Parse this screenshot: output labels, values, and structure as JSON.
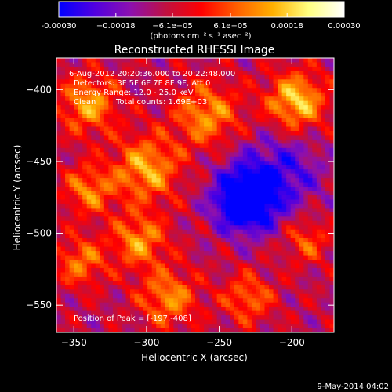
{
  "chart_data": {
    "type": "heatmap",
    "title": "Reconstructed RHESSI Image",
    "xlabel": "Heliocentric X (arcsec)",
    "ylabel": "Heliocentric Y (arcsec)",
    "xlim": [
      -362,
      -171
    ],
    "ylim": [
      -569,
      -378
    ],
    "x_ticks": [
      -350,
      -300,
      -250,
      -200
    ],
    "y_ticks": [
      -550,
      -500,
      -450,
      -400
    ],
    "x_tick_labels": [
      "−350",
      "−300",
      "−250",
      "−200"
    ],
    "y_tick_labels": [
      "−550",
      "−500",
      "−450",
      "−400"
    ],
    "colorbar": {
      "min": -0.0003,
      "max": 0.0003,
      "tick_values": [
        -0.0003,
        -0.00018,
        -6.1e-05,
        6.1e-05,
        0.00018,
        0.0003
      ],
      "tick_labels": [
        "-0.00030",
        "−0.00018",
        "−6.1e−05",
        "6.1e−05",
        "0.00018",
        "0.00030"
      ],
      "unit_label": "(photons cm⁻² s⁻¹ asec⁻²)",
      "colors": [
        "#0000ff",
        "#5000e0",
        "#8c10b0",
        "#c01040",
        "#ff0000",
        "#ff6000",
        "#ffb000",
        "#ffff80",
        "#ffffff"
      ]
    },
    "annotations": [
      "6-Aug-2012 20:20:36.000 to 20:22:48.000",
      "Detectors: 3F 5F 6F 7F 8F 9F, Att 0",
      "Energy Range: 12.0 - 25.0 keV",
      "Clean",
      "Total counts: 1.69E+03"
    ],
    "peak_label": "Position of Peak = [-197,-408]",
    "peak_position": [
      -197,
      -408
    ],
    "footer_date": "9-May-2014 04:02",
    "image_sources": [
      {
        "x": -197,
        "y": -408,
        "sigma": 14,
        "amp": 0.00026
      },
      {
        "x": -258,
        "y": -418,
        "sigma": 16,
        "amp": 0.0002
      },
      {
        "x": -340,
        "y": -410,
        "sigma": 14,
        "amp": 0.00021
      },
      {
        "x": -300,
        "y": -455,
        "sigma": 16,
        "amp": 0.00022
      },
      {
        "x": -340,
        "y": -470,
        "sigma": 12,
        "amp": 0.00018
      },
      {
        "x": -305,
        "y": -505,
        "sigma": 13,
        "amp": 0.0002
      },
      {
        "x": -345,
        "y": -520,
        "sigma": 12,
        "amp": 0.00017
      },
      {
        "x": -285,
        "y": -545,
        "sigma": 14,
        "amp": 0.00019
      },
      {
        "x": -230,
        "y": -545,
        "sigma": 12,
        "amp": 0.00016
      },
      {
        "x": -190,
        "y": -505,
        "sigma": 11,
        "amp": 0.00014
      },
      {
        "x": -232,
        "y": -478,
        "sigma": 13,
        "amp": -0.00034
      },
      {
        "x": -222,
        "y": -465,
        "sigma": 22,
        "amp": -0.00013
      },
      {
        "x": -200,
        "y": -455,
        "sigma": 16,
        "amp": -8e-05
      }
    ]
  }
}
